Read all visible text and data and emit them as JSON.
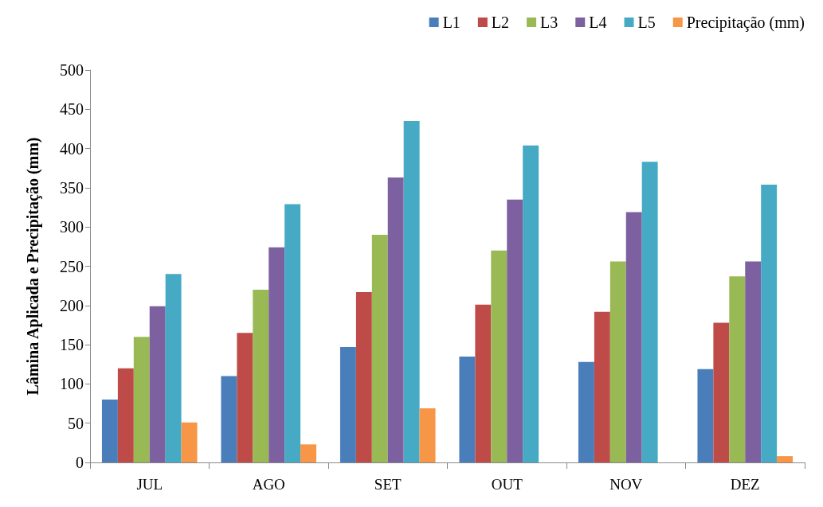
{
  "chart_data": {
    "type": "bar",
    "ylabel": "Lâmina Aplicada e Precipitação (mm)",
    "categories": [
      "JUL",
      "AGO",
      "SET",
      "OUT",
      "NOV",
      "DEZ"
    ],
    "series": [
      {
        "name": "L1",
        "color": "#4a7ebb",
        "values": [
          80,
          110,
          147,
          135,
          128,
          119
        ]
      },
      {
        "name": "L2",
        "color": "#be4b48",
        "values": [
          120,
          165,
          217,
          201,
          192,
          178
        ]
      },
      {
        "name": "L3",
        "color": "#98b954",
        "values": [
          160,
          220,
          290,
          270,
          256,
          237
        ]
      },
      {
        "name": "L4",
        "color": "#7d60a0",
        "values": [
          199,
          274,
          363,
          335,
          319,
          256
        ]
      },
      {
        "name": "L5",
        "color": "#46aac5",
        "values": [
          240,
          329,
          435,
          404,
          383,
          354
        ]
      },
      {
        "name": "Precipitação (mm)",
        "color": "#f79646",
        "values": [
          51,
          23,
          69,
          0,
          0,
          8
        ]
      }
    ],
    "ylim": [
      0,
      500
    ],
    "yticks": [
      0,
      50,
      100,
      150,
      200,
      250,
      300,
      350,
      400,
      450,
      500
    ],
    "grid": false,
    "legend": "top right"
  }
}
